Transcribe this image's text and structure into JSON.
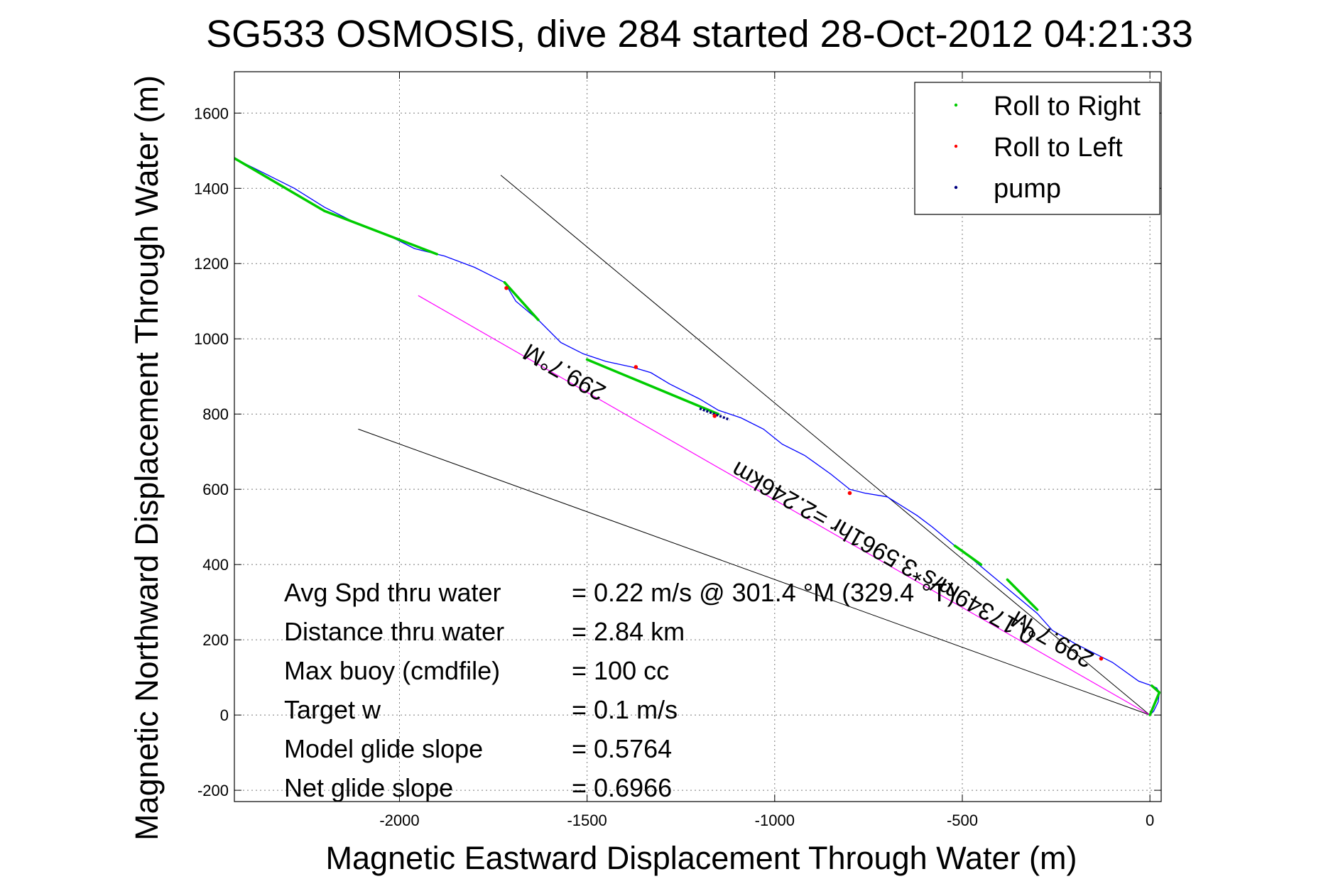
{
  "chart_data": {
    "type": "line",
    "title": "SG533 OSMOSIS, dive 284 started 28-Oct-2012 04:21:33",
    "xlabel": "Magnetic Eastward Displacement Through Water (m)",
    "ylabel": "Magnetic Northward Displacement Through Water (m)",
    "xlim": [
      -2440,
      30
    ],
    "ylim": [
      -230,
      1710
    ],
    "xticks": [
      -2000,
      -1500,
      -1000,
      -500,
      0
    ],
    "yticks": [
      -200,
      0,
      200,
      400,
      600,
      800,
      1000,
      1200,
      1400,
      1600
    ],
    "grid": true,
    "legend_position": "top-right",
    "legend": [
      {
        "label": "Roll to Right",
        "color": "#00cc00"
      },
      {
        "label": "Roll to Left",
        "color": "#ff0000"
      },
      {
        "label": "pump",
        "color": "#000080"
      }
    ],
    "colors": {
      "track": "#0000ff",
      "roll_right": "#00cc00",
      "roll_left": "#ff0000",
      "pump": "#000080",
      "heading_line": "#ff00ff",
      "bound_lines": "#000000"
    },
    "track": {
      "x": [
        0,
        10,
        22,
        25,
        18,
        5,
        -30,
        -100,
        -200,
        -260,
        -300,
        -360,
        -420,
        -480,
        -520,
        -580,
        -620,
        -700,
        -760,
        -800,
        -850,
        -920,
        -980,
        -1030,
        -1090,
        -1150,
        -1200,
        -1280,
        -1330,
        -1380,
        -1450,
        -1510,
        -1570,
        -1630,
        -1690,
        -1720,
        -1800,
        -1880,
        -1960,
        -2040,
        -2100,
        -2200,
        -2280,
        -2340,
        -2380,
        -2440
      ],
      "y": [
        0,
        10,
        35,
        60,
        72,
        78,
        90,
        140,
        190,
        225,
        270,
        320,
        370,
        420,
        450,
        500,
        530,
        580,
        590,
        600,
        640,
        690,
        720,
        760,
        790,
        810,
        840,
        880,
        910,
        925,
        940,
        960,
        990,
        1050,
        1100,
        1150,
        1190,
        1220,
        1240,
        1280,
        1300,
        1350,
        1400,
        1430,
        1450,
        1480
      ]
    },
    "roll_right_segments": [
      {
        "x": [
          -2440,
          -2200
        ],
        "y": [
          1480,
          1340
        ]
      },
      {
        "x": [
          -2200,
          -1900
        ],
        "y": [
          1340,
          1225
        ]
      },
      {
        "x": [
          -1720,
          -1630
        ],
        "y": [
          1150,
          1050
        ]
      },
      {
        "x": [
          -1500,
          -1150
        ],
        "y": [
          945,
          800
        ]
      },
      {
        "x": [
          -520,
          -450
        ],
        "y": [
          450,
          400
        ]
      },
      {
        "x": [
          -380,
          -300
        ],
        "y": [
          360,
          280
        ]
      },
      {
        "x": [
          0,
          25,
          5
        ],
        "y": [
          0,
          60,
          78
        ]
      }
    ],
    "roll_left_points": [
      {
        "x": -1715,
        "y": 1135
      },
      {
        "x": -1370,
        "y": 925
      },
      {
        "x": -1160,
        "y": 795
      },
      {
        "x": -800,
        "y": 590
      },
      {
        "x": -130,
        "y": 150
      }
    ],
    "pump_segment": {
      "x": [
        -1200,
        -1120
      ],
      "y": [
        815,
        785
      ]
    },
    "heading_line": {
      "x": [
        0,
        -1950
      ],
      "y": [
        0,
        1115
      ]
    },
    "bound_lines": [
      {
        "x": [
          0,
          -1730
        ],
        "y": [
          0,
          1435
        ]
      },
      {
        "x": [
          0,
          -2110
        ],
        "y": [
          0,
          760
        ]
      }
    ],
    "annotations": [
      {
        "text": "299.7°M",
        "x": -1550,
        "y": 930,
        "rotate": 209.6
      },
      {
        "text": "0.17349m/s*3.5961hr =2.246km",
        "x": -700,
        "y": 450,
        "rotate": 209.6
      },
      {
        "text": "299.7°M",
        "x": -250,
        "y": 220,
        "rotate": 209.6
      }
    ],
    "stats": [
      {
        "label": "Avg Spd thru water",
        "value": "=  0.22 m/s @ 301.4 °M (329.4 °T)"
      },
      {
        "label": "Distance thru water",
        "value": "=  2.84 km"
      },
      {
        "label": "Max buoy (cmdfile)",
        "value": "= 100 cc"
      },
      {
        "label": "Target w",
        "value": "= 0.1 m/s"
      },
      {
        "label": "Model glide slope",
        "value": "= 0.5764"
      },
      {
        "label": "Net glide slope",
        "value": "= 0.6966"
      }
    ]
  }
}
